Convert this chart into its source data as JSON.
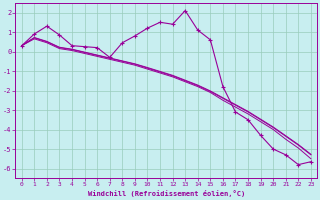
{
  "xlabel": "Windchill (Refroidissement éolien,°C)",
  "xlim": [
    -0.5,
    23.5
  ],
  "ylim": [
    -6.5,
    2.5
  ],
  "yticks": [
    2,
    1,
    0,
    -1,
    -2,
    -3,
    -4,
    -5,
    -6
  ],
  "xticks": [
    0,
    1,
    2,
    3,
    4,
    5,
    6,
    7,
    8,
    9,
    10,
    11,
    12,
    13,
    14,
    15,
    16,
    17,
    18,
    19,
    20,
    21,
    22,
    23
  ],
  "bg_color": "#c8eef0",
  "line_color": "#990099",
  "grid_color": "#99ccbb",
  "series_main": [
    0.3,
    0.9,
    1.3,
    0.85,
    0.3,
    0.25,
    0.2,
    -0.3,
    0.45,
    0.8,
    1.2,
    1.5,
    1.4,
    2.1,
    1.1,
    0.6,
    -1.8,
    -3.1,
    -3.5,
    -4.3,
    -5.0,
    -5.3,
    -5.8,
    -5.65
  ],
  "series_linear1": [
    0.3,
    0.7,
    0.5,
    0.2,
    0.1,
    -0.05,
    -0.2,
    -0.35,
    -0.5,
    -0.65,
    -0.85,
    -1.05,
    -1.25,
    -1.5,
    -1.75,
    -2.05,
    -2.4,
    -2.75,
    -3.1,
    -3.5,
    -3.9,
    -4.35,
    -4.8,
    -5.3
  ],
  "series_linear2": [
    0.3,
    0.65,
    0.45,
    0.15,
    0.05,
    -0.1,
    -0.25,
    -0.4,
    -0.55,
    -0.7,
    -0.9,
    -1.1,
    -1.3,
    -1.55,
    -1.8,
    -2.1,
    -2.5,
    -2.85,
    -3.2,
    -3.6,
    -4.0,
    -4.5,
    -4.95,
    -5.5
  ],
  "series_linear3": [
    0.3,
    0.72,
    0.52,
    0.22,
    0.12,
    -0.03,
    -0.18,
    -0.33,
    -0.48,
    -0.63,
    -0.82,
    -1.02,
    -1.22,
    -1.47,
    -1.72,
    -2.02,
    -2.37,
    -2.72,
    -3.07,
    -3.47,
    -3.87,
    -4.32,
    -4.77,
    -5.27
  ]
}
